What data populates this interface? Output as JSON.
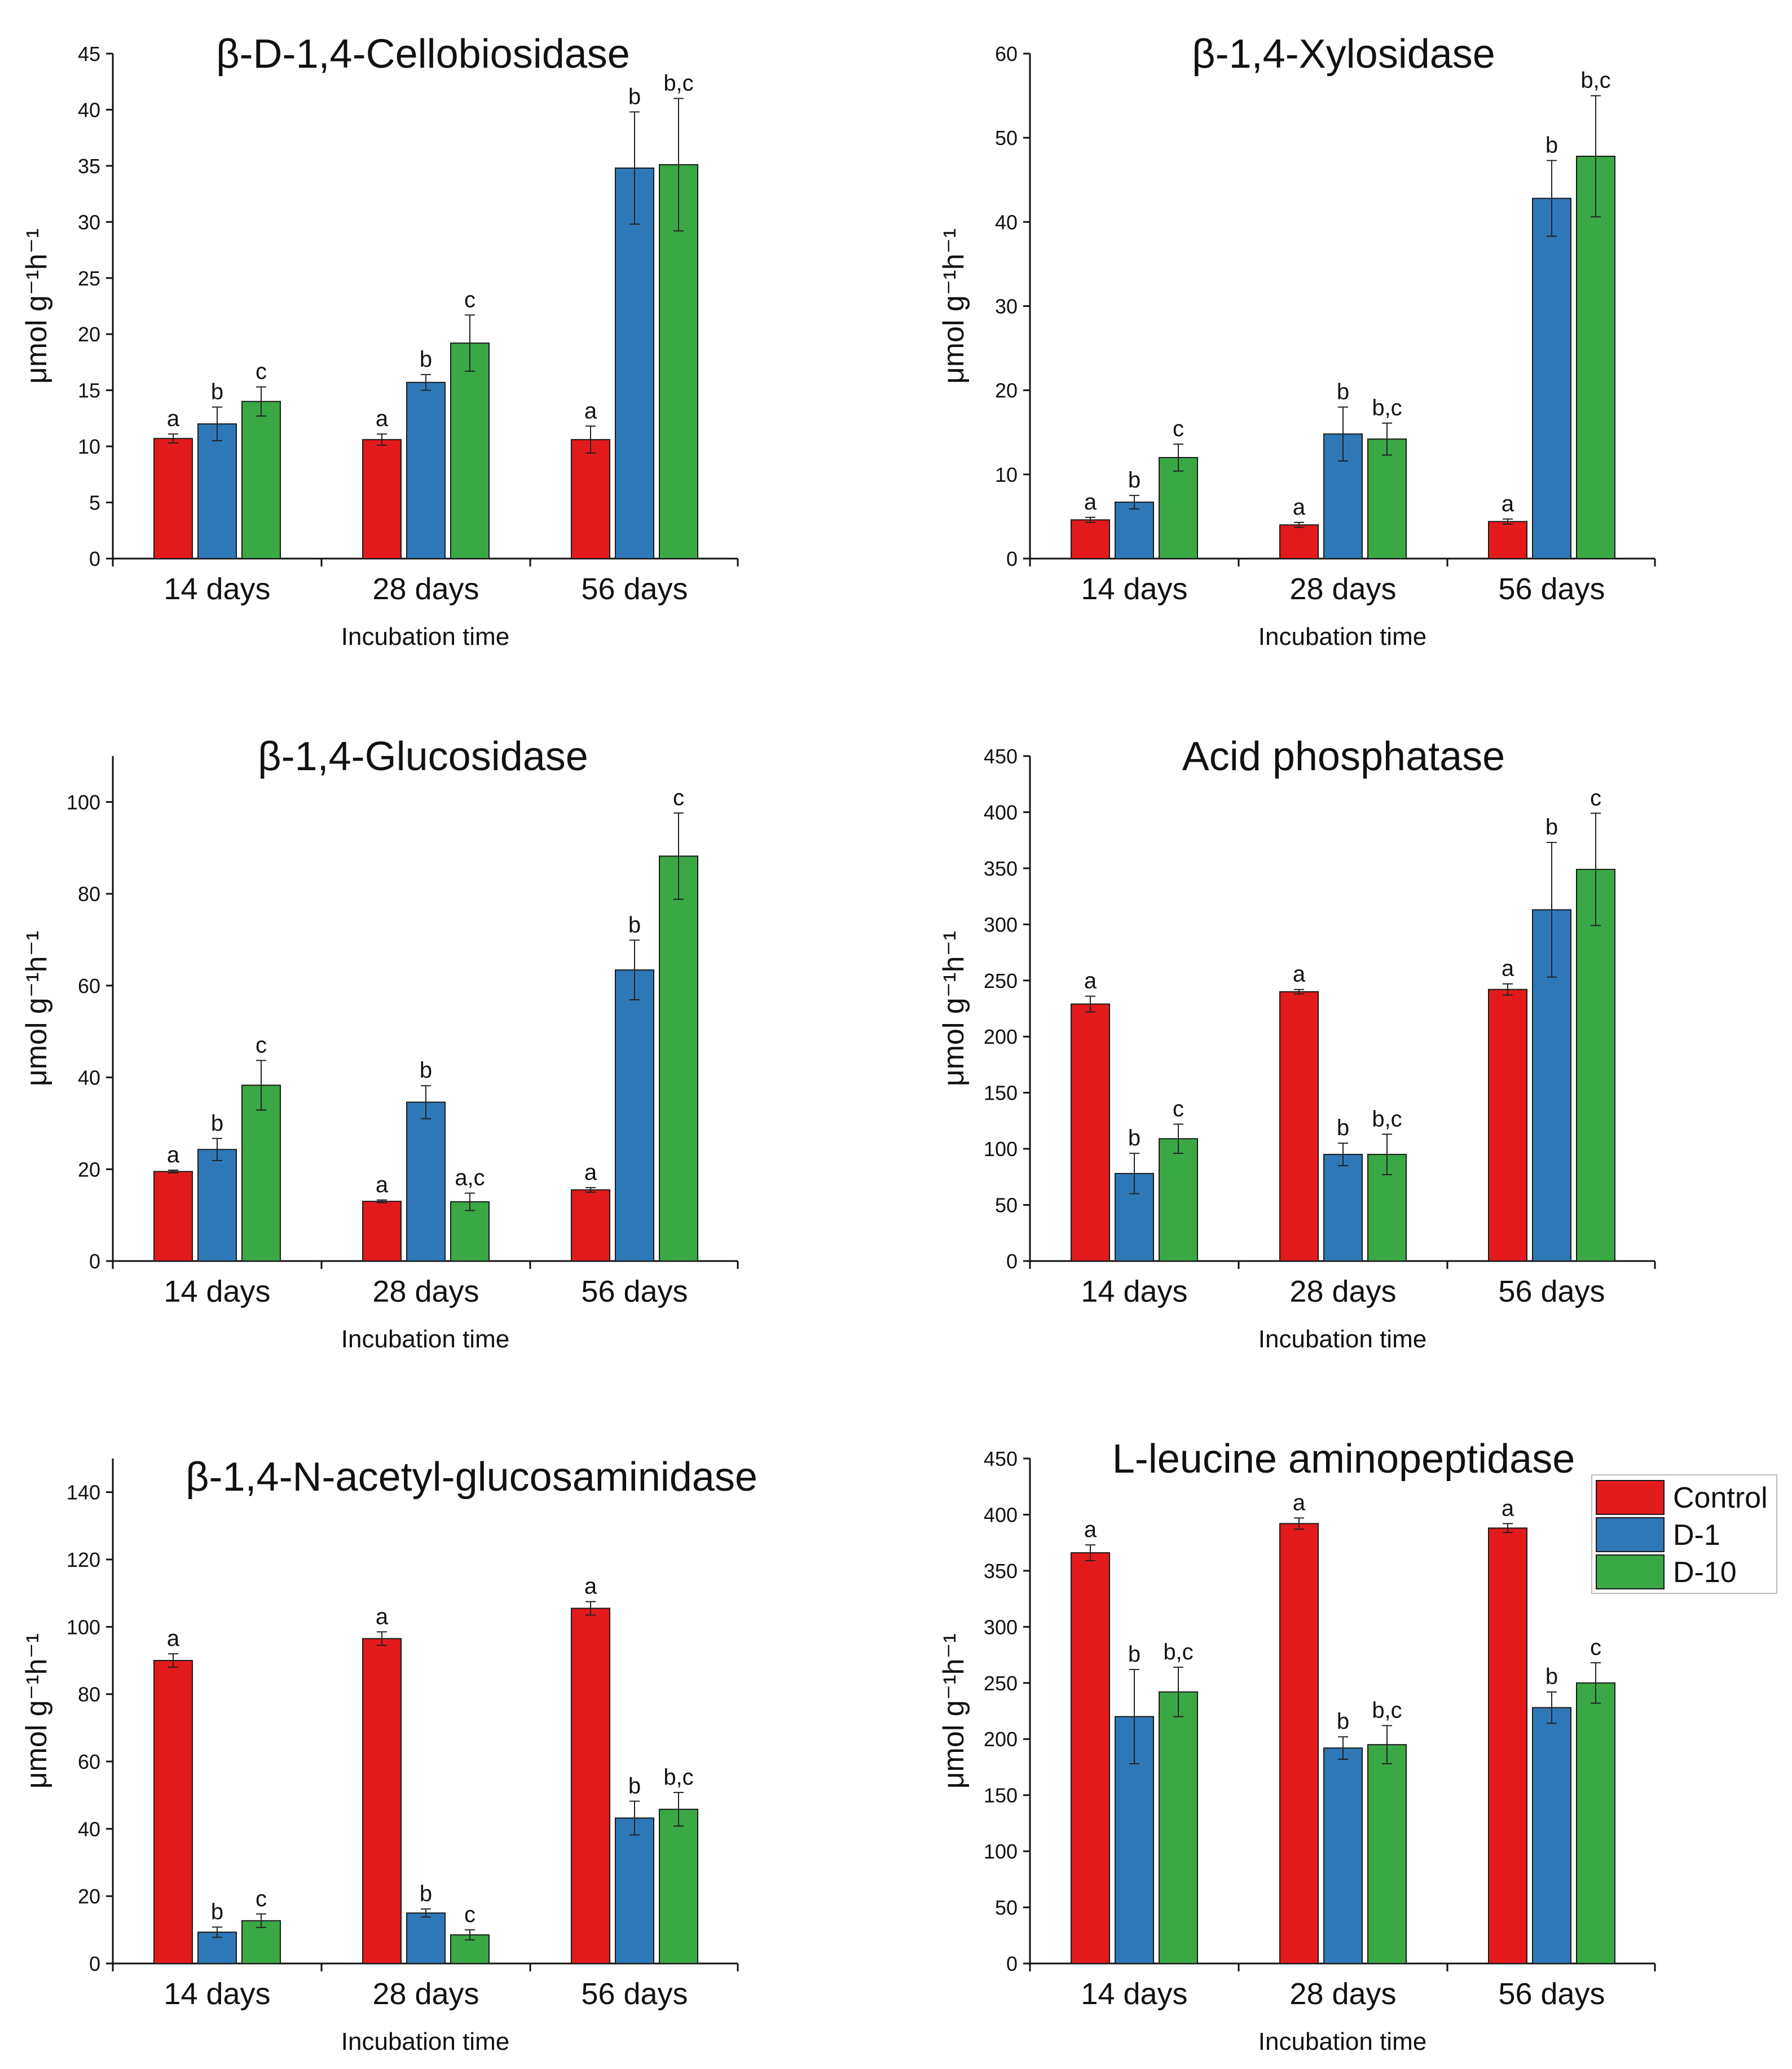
{
  "chart_data": [
    {
      "type": "bar",
      "title": "β-D-1,4-Cellobiosidase",
      "xlabel": "Incubation time",
      "ylabel": "μmol g⁻¹h⁻¹",
      "ylim": [
        0,
        45
      ],
      "ytick_step": 5,
      "categories": [
        "14 days",
        "28 days",
        "56 days"
      ],
      "series": [
        {
          "name": "Control",
          "color": "#e31a1c",
          "values": [
            10.7,
            10.6,
            10.6
          ],
          "errors": [
            0.4,
            0.5,
            1.2
          ],
          "labels": [
            "a",
            "a",
            "a"
          ]
        },
        {
          "name": "D-1",
          "color": "#2f78b8",
          "values": [
            12.0,
            15.7,
            34.8
          ],
          "errors": [
            1.5,
            0.7,
            5.0
          ],
          "labels": [
            "b",
            "b",
            "b"
          ]
        },
        {
          "name": "D-10",
          "color": "#3aa845",
          "values": [
            14.0,
            19.2,
            35.1
          ],
          "errors": [
            1.3,
            2.5,
            5.9
          ],
          "labels": [
            "c",
            "c",
            "b,c"
          ]
        }
      ]
    },
    {
      "type": "bar",
      "title": "β-1,4-Xylosidase",
      "xlabel": "Incubation time",
      "ylabel": "μmol g⁻¹h⁻¹",
      "ylim": [
        0,
        60
      ],
      "ytick_step": 10,
      "categories": [
        "14 days",
        "28 days",
        "56 days"
      ],
      "series": [
        {
          "name": "Control",
          "color": "#e31a1c",
          "values": [
            4.6,
            4.0,
            4.4
          ],
          "errors": [
            0.3,
            0.3,
            0.3
          ],
          "labels": [
            "a",
            "a",
            "a"
          ]
        },
        {
          "name": "D-1",
          "color": "#2f78b8",
          "values": [
            6.7,
            14.8,
            42.8
          ],
          "errors": [
            0.8,
            3.2,
            4.5
          ],
          "labels": [
            "b",
            "b",
            "b"
          ]
        },
        {
          "name": "D-10",
          "color": "#3aa845",
          "values": [
            12.0,
            14.2,
            47.8
          ],
          "errors": [
            1.6,
            1.9,
            7.2
          ],
          "labels": [
            "c",
            "b,c",
            "b,c"
          ]
        }
      ]
    },
    {
      "type": "bar",
      "title": "β-1,4-Glucosidase",
      "xlabel": "Incubation time",
      "ylabel": "μmol g⁻¹h⁻¹",
      "ylim": [
        0,
        110
      ],
      "ytick_max": 100,
      "ytick_step": 20,
      "categories": [
        "14 days",
        "28 days",
        "56 days"
      ],
      "series": [
        {
          "name": "Control",
          "color": "#e31a1c",
          "values": [
            19.5,
            13.0,
            15.5
          ],
          "errors": [
            0.3,
            0.3,
            0.5
          ],
          "labels": [
            "a",
            "a",
            "a"
          ]
        },
        {
          "name": "D-1",
          "color": "#2f78b8",
          "values": [
            24.3,
            34.6,
            63.4
          ],
          "errors": [
            2.4,
            3.6,
            6.5
          ],
          "labels": [
            "b",
            "b",
            "b"
          ]
        },
        {
          "name": "D-10",
          "color": "#3aa845",
          "values": [
            38.3,
            12.9,
            88.2
          ],
          "errors": [
            5.4,
            1.9,
            9.4
          ],
          "labels": [
            "c",
            "a,c",
            "c"
          ]
        }
      ]
    },
    {
      "type": "bar",
      "title": "Acid phosphatase",
      "xlabel": "Incubation time",
      "ylabel": "μmol g⁻¹h⁻¹",
      "ylim": [
        0,
        450
      ],
      "ytick_step": 50,
      "categories": [
        "14 days",
        "28 days",
        "56 days"
      ],
      "series": [
        {
          "name": "Control",
          "color": "#e31a1c",
          "values": [
            229,
            240,
            242
          ],
          "errors": [
            7,
            2,
            5
          ],
          "labels": [
            "a",
            "a",
            "a"
          ]
        },
        {
          "name": "D-1",
          "color": "#2f78b8",
          "values": [
            78,
            95,
            313
          ],
          "errors": [
            18,
            10,
            60
          ],
          "labels": [
            "b",
            "b",
            "b"
          ]
        },
        {
          "name": "D-10",
          "color": "#3aa845",
          "values": [
            109,
            95,
            349
          ],
          "errors": [
            13,
            18,
            50
          ],
          "labels": [
            "c",
            "b,c",
            "c"
          ]
        }
      ]
    },
    {
      "type": "bar",
      "title": "β-1,4-N-acetyl-glucosaminidase",
      "xlabel": "Incubation time",
      "ylabel": "μmol g⁻¹h⁻¹",
      "ylim": [
        0,
        150
      ],
      "ytick_max": 140,
      "ytick_step": 20,
      "categories": [
        "14 days",
        "28 days",
        "56 days"
      ],
      "series": [
        {
          "name": "Control",
          "color": "#e31a1c",
          "values": [
            90,
            96.5,
            105.5
          ],
          "errors": [
            2,
            2,
            2
          ],
          "labels": [
            "a",
            "a",
            "a"
          ]
        },
        {
          "name": "D-1",
          "color": "#2f78b8",
          "values": [
            9.3,
            15,
            43.2
          ],
          "errors": [
            1.5,
            1.2,
            5
          ],
          "labels": [
            "b",
            "b",
            "b"
          ]
        },
        {
          "name": "D-10",
          "color": "#3aa845",
          "values": [
            12.7,
            8.5,
            45.8
          ],
          "errors": [
            2,
            1.5,
            5
          ],
          "labels": [
            "c",
            "c",
            "b,c"
          ]
        }
      ]
    },
    {
      "type": "bar",
      "title": "L-leucine aminopeptidase",
      "xlabel": "Incubation time",
      "ylabel": "μmol g⁻¹h⁻¹",
      "ylim": [
        0,
        450
      ],
      "ytick_step": 50,
      "categories": [
        "14 days",
        "28 days",
        "56 days"
      ],
      "series": [
        {
          "name": "Control",
          "color": "#e31a1c",
          "values": [
            366,
            392,
            388
          ],
          "errors": [
            7,
            5,
            4
          ],
          "labels": [
            "a",
            "a",
            "a"
          ]
        },
        {
          "name": "D-1",
          "color": "#2f78b8",
          "values": [
            220,
            192,
            228
          ],
          "errors": [
            42,
            10,
            14
          ],
          "labels": [
            "b",
            "b",
            "b"
          ]
        },
        {
          "name": "D-10",
          "color": "#3aa845",
          "values": [
            242,
            195,
            250
          ],
          "errors": [
            22,
            17,
            18
          ],
          "labels": [
            "b,c",
            "b,c",
            "c"
          ]
        }
      ]
    }
  ],
  "legend": {
    "items": [
      {
        "name": "Control",
        "color": "#e31a1c"
      },
      {
        "name": "D-1",
        "color": "#2f78b8"
      },
      {
        "name": "D-10",
        "color": "#3aa845"
      }
    ]
  }
}
